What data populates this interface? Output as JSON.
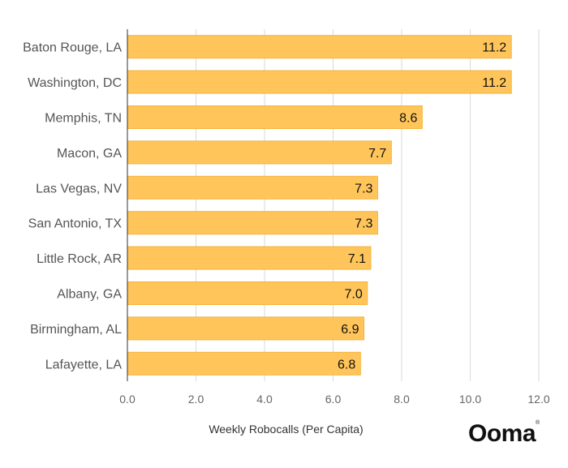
{
  "chart_data": {
    "type": "bar",
    "orientation": "horizontal",
    "categories": [
      "Baton Rouge, LA",
      "Washington, DC",
      "Memphis, TN",
      "Macon, GA",
      "Las Vegas, NV",
      "San Antonio, TX",
      "Little Rock, AR",
      "Albany, GA",
      "Birmingham, AL",
      "Lafayette, LA"
    ],
    "values": [
      11.2,
      11.2,
      8.6,
      7.7,
      7.3,
      7.3,
      7.1,
      7.0,
      6.9,
      6.8
    ],
    "value_labels": [
      "11.2",
      "11.2",
      "8.6",
      "7.7",
      "7.3",
      "7.3",
      "7.1",
      "7.0",
      "6.9",
      "6.8"
    ],
    "xlabel": "Weekly Robocalls (Per Capita)",
    "xlim": [
      0,
      12
    ],
    "ticks": [
      0,
      2,
      4,
      6,
      8,
      10,
      12
    ],
    "tick_labels": [
      "0.0",
      "2.0",
      "4.0",
      "6.0",
      "8.0",
      "10.0",
      "12.0"
    ],
    "grid": "vertical",
    "colors": {
      "bar": "#FFC55A",
      "bar_stroke": "#F5B43C",
      "grid": "#D9D9D9",
      "axis": "#333333"
    }
  },
  "brand": {
    "logo_text": "Ooma",
    "trademark": "®"
  }
}
